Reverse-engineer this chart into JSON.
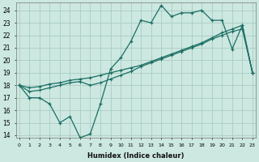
{
  "xlabel": "Humidex (Indice chaleur)",
  "bg_color": "#cce8e0",
  "grid_color": "#aaccC4",
  "line_color": "#1a6e64",
  "x_ticks": [
    0,
    1,
    2,
    3,
    4,
    5,
    6,
    7,
    8,
    9,
    10,
    11,
    12,
    13,
    14,
    15,
    16,
    17,
    18,
    19,
    20,
    21,
    22,
    23
  ],
  "y_ticks": [
    14,
    15,
    16,
    17,
    18,
    19,
    20,
    21,
    22,
    23,
    24
  ],
  "ylim": [
    13.8,
    24.6
  ],
  "xlim": [
    -0.3,
    23.3
  ],
  "curve1_x": [
    0,
    1,
    2,
    3,
    4,
    5,
    6,
    7,
    8,
    9,
    10,
    11,
    12,
    13,
    14,
    15,
    16,
    17,
    18,
    19,
    20,
    21,
    22,
    23
  ],
  "curve1_y": [
    18.0,
    17.0,
    17.0,
    16.5,
    15.0,
    15.5,
    13.8,
    14.1,
    16.5,
    19.3,
    20.2,
    21.5,
    23.2,
    23.0,
    24.4,
    23.5,
    23.8,
    23.8,
    24.0,
    23.2,
    23.2,
    20.9,
    22.8,
    19.0
  ],
  "curve2_x": [
    0,
    1,
    2,
    3,
    4,
    5,
    6,
    7,
    8,
    9,
    10,
    11,
    12,
    13,
    14,
    15,
    16,
    17,
    18,
    19,
    20,
    21,
    22,
    23
  ],
  "curve2_y": [
    18.0,
    17.8,
    17.9,
    18.1,
    18.2,
    18.4,
    18.5,
    18.6,
    18.8,
    19.0,
    19.2,
    19.4,
    19.6,
    19.9,
    20.2,
    20.5,
    20.8,
    21.1,
    21.4,
    21.8,
    22.2,
    22.5,
    22.8,
    19.0
  ],
  "curve3_x": [
    0,
    1,
    2,
    3,
    4,
    5,
    6,
    7,
    8,
    9,
    10,
    11,
    12,
    13,
    14,
    15,
    16,
    17,
    18,
    19,
    20,
    21,
    22,
    23
  ],
  "curve3_y": [
    18.0,
    17.5,
    17.6,
    17.8,
    18.0,
    18.2,
    18.3,
    18.0,
    18.2,
    18.5,
    18.8,
    19.1,
    19.5,
    19.8,
    20.1,
    20.4,
    20.7,
    21.0,
    21.3,
    21.7,
    22.0,
    22.3,
    22.5,
    19.0
  ]
}
